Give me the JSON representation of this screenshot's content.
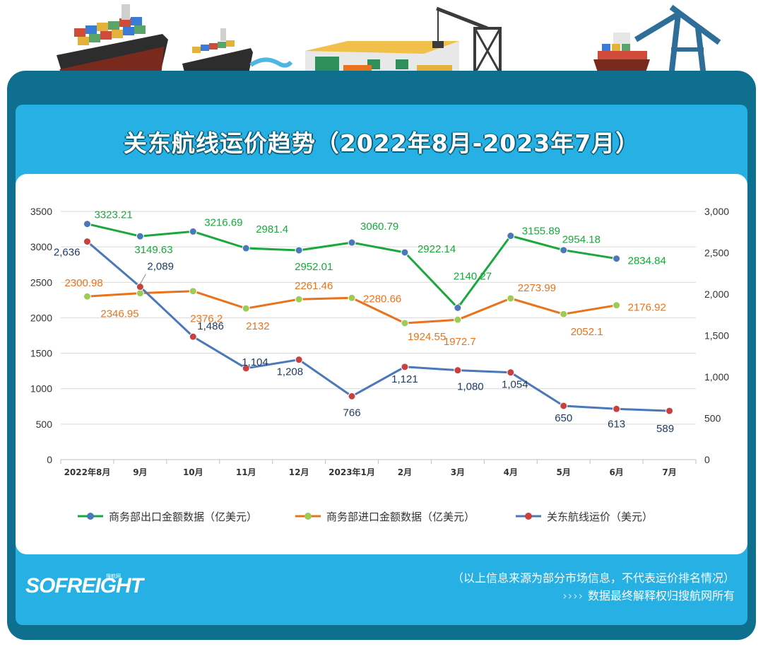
{
  "title": "关东航线运价趋势（2022年8月-2023年7月）",
  "colors": {
    "export": "#1aa83c",
    "import": "#e8731c",
    "freight": "#4a78b8",
    "freight_dot": "#c8413f",
    "import_dot": "#9ccc57",
    "export_dot": "#4a78b8",
    "frame": "#0e6f8e",
    "panel": "#27b0e3"
  },
  "footer": {
    "logo": "SOFREIGHT",
    "logo_sub": "搜航网",
    "note_line1": "（以上信息来源为部分市场信息，不代表运价排名情况）",
    "note_line2_arrows": "››››",
    "note_line2": "数据最终解释权归搜航网所有"
  },
  "icons": [
    "container-ship-icon",
    "container-ship-small-icon",
    "warehouse-icon",
    "port-crane-icon",
    "cargo-ship-icon",
    "gantry-crane-icon"
  ],
  "chart_data": {
    "type": "line",
    "categories": [
      "2022年8月",
      "9月",
      "10月",
      "11月",
      "12月",
      "2023年1月",
      "2月",
      "3月",
      "4月",
      "5月",
      "6月",
      "7月"
    ],
    "y_left": {
      "range": [
        0,
        3500
      ],
      "ticks": [
        "0",
        "500",
        "1000",
        "1500",
        "2000",
        "2500",
        "3000",
        "3500"
      ]
    },
    "y_right": {
      "range": [
        0,
        3000
      ],
      "ticks": [
        "0",
        "500",
        "1,000",
        "1,500",
        "2,000",
        "2,500",
        "3,000"
      ]
    },
    "grid": true,
    "legend_position": "bottom",
    "series": [
      {
        "name": "商务部出口金额数据（亿美元）",
        "axis": "left",
        "values": [
          3323.21,
          3149.63,
          3216.69,
          2981.4,
          2952.01,
          3060.79,
          2922.14,
          2140.27,
          3155.89,
          2954.18,
          2834.84,
          null
        ],
        "labels": [
          "3323.21",
          "3149.63",
          "3216.69",
          "2981.4",
          "2952.01",
          "3060.79",
          "2922.14",
          "2140.27",
          "3155.89",
          "2954.18",
          "2834.84",
          ""
        ]
      },
      {
        "name": "商务部进口金额数据（亿美元）",
        "axis": "left",
        "values": [
          2300.98,
          2346.95,
          2376.2,
          2132,
          2261.46,
          2280.66,
          1924.55,
          1972.7,
          2273.99,
          2052.1,
          2176.92,
          null
        ],
        "labels": [
          "2300.98",
          "2346.95",
          "2376.2",
          "2132",
          "2261.46",
          "2280.66",
          "1924.55",
          "1972.7",
          "2273.99",
          "2052.1",
          "2176.92",
          ""
        ]
      },
      {
        "name": "关东航线运价（美元）",
        "axis": "right",
        "values": [
          2636,
          2089,
          1486,
          1104,
          1208,
          766,
          1121,
          1080,
          1054,
          650,
          613,
          589
        ],
        "labels": [
          "2,636",
          "2,089",
          "1,486",
          "1,104",
          "1,208",
          "766",
          "1,121",
          "1,080",
          "1,054",
          "650",
          "613",
          "589"
        ]
      }
    ]
  }
}
